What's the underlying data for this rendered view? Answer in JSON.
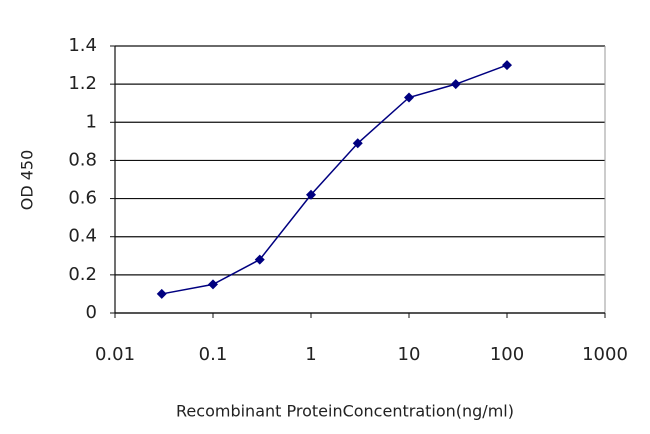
{
  "chart_data": {
    "type": "line",
    "xlabel": "Recombinant ProteinConcentration(ng/ml)",
    "ylabel": "OD 450",
    "xscale": "log",
    "grid": true,
    "x": [
      0.03,
      0.1,
      0.3,
      1,
      3,
      10,
      30,
      100
    ],
    "series": [
      {
        "color": "#000080",
        "values": [
          0.1,
          0.15,
          0.28,
          0.62,
          0.89,
          1.13,
          1.2,
          1.3
        ]
      }
    ],
    "xlim": [
      0.01,
      1000
    ],
    "xticks": [
      0.01,
      0.1,
      1,
      10,
      100,
      1000
    ],
    "ylim": [
      0,
      1.4
    ],
    "yticks": [
      0,
      0.2,
      0.4,
      0.6,
      0.8,
      1,
      1.2,
      1.4
    ]
  }
}
